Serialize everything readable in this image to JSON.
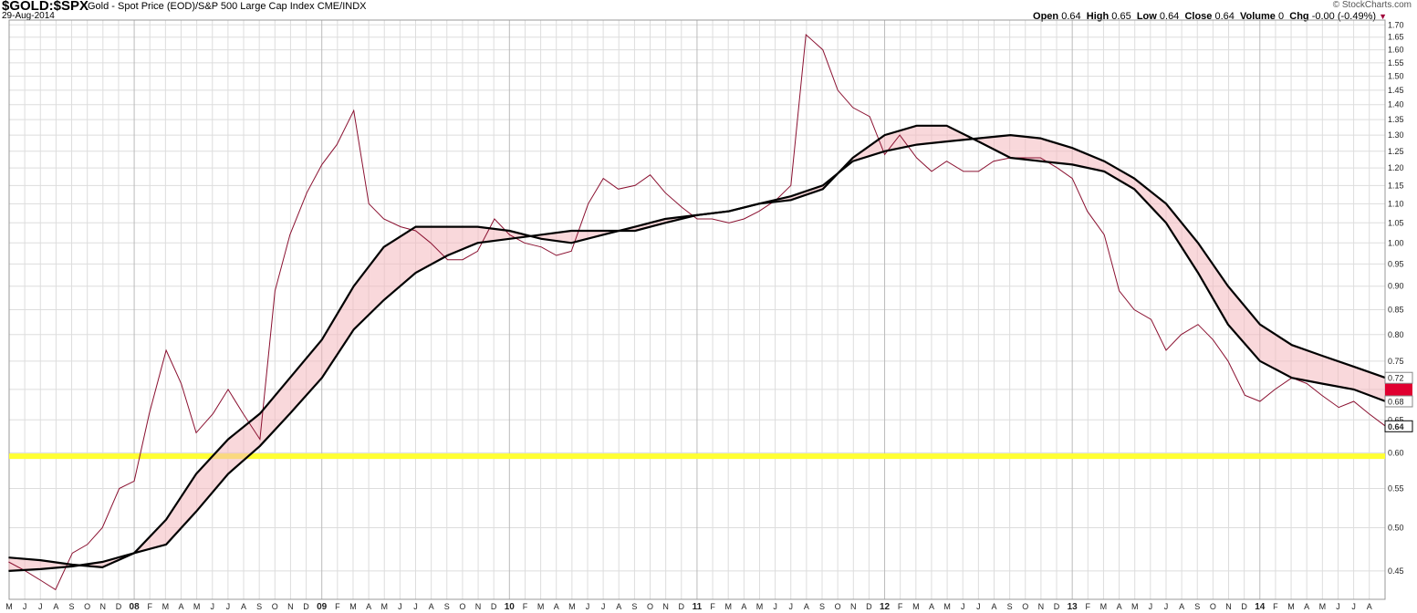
{
  "header": {
    "symbol": "$GOLD:$SPX",
    "description": "Gold - Spot Price (EOD)/S&P 500 Large Cap Index  CME/INDX",
    "date": "29-Aug-2014",
    "source": "© StockCharts.com",
    "ohlc": [
      {
        "label": "Open",
        "value": "0.64"
      },
      {
        "label": "High",
        "value": "0.65"
      },
      {
        "label": "Low",
        "value": "0.64"
      },
      {
        "label": "Close",
        "value": "0.64"
      },
      {
        "label": "Volume",
        "value": "0"
      },
      {
        "label": "Chg",
        "value": "-0.00 (-0.49%)"
      }
    ],
    "chg_marker": "▼"
  },
  "colors": {
    "price": "#8a1030",
    "ma": "#000000",
    "band": "#f4b8be",
    "support": "#ffff33",
    "grid": "#dddddd",
    "tag_ma": "#e00030"
  },
  "chart_data": {
    "type": "line",
    "scale": "log",
    "ylim": [
      0.42,
      1.72
    ],
    "yticks": [
      0.45,
      0.5,
      0.55,
      0.6,
      0.65,
      0.7,
      0.75,
      0.8,
      0.85,
      0.9,
      0.95,
      1.0,
      1.05,
      1.1,
      1.15,
      1.2,
      1.25,
      1.3,
      1.35,
      1.4,
      1.45,
      1.5,
      1.55,
      1.6,
      1.65,
      1.7
    ],
    "xlim": [
      2007.333,
      2014.667
    ],
    "x_month_labels": [
      "M",
      "J",
      "J",
      "A",
      "S",
      "O",
      "N",
      "D",
      "08",
      "F",
      "M",
      "A",
      "M",
      "J",
      "J",
      "A",
      "S",
      "O",
      "N",
      "D",
      "09",
      "F",
      "M",
      "A",
      "M",
      "J",
      "J",
      "A",
      "S",
      "O",
      "N",
      "D",
      "10",
      "F",
      "M",
      "A",
      "M",
      "J",
      "J",
      "A",
      "S",
      "O",
      "N",
      "D",
      "11",
      "F",
      "M",
      "A",
      "M",
      "J",
      "J",
      "A",
      "S",
      "O",
      "N",
      "D",
      "12",
      "F",
      "M",
      "A",
      "M",
      "J",
      "J",
      "A",
      "S",
      "O",
      "N",
      "D",
      "13",
      "F",
      "M",
      "A",
      "M",
      "J",
      "J",
      "A",
      "S",
      "O",
      "N",
      "D",
      "14",
      "F",
      "M",
      "A",
      "M",
      "J",
      "J",
      "A"
    ],
    "support_level": 0.595,
    "last_values": {
      "price": "0.64",
      "ma_fast": "0.68",
      "ma_slow": "0.72"
    },
    "series": [
      {
        "role": "price",
        "x": [
          2007.33,
          2007.42,
          2007.5,
          2007.58,
          2007.67,
          2007.75,
          2007.83,
          2007.92,
          2008.0,
          2008.08,
          2008.17,
          2008.25,
          2008.33,
          2008.42,
          2008.5,
          2008.58,
          2008.67,
          2008.75,
          2008.83,
          2008.92,
          2009.0,
          2009.08,
          2009.17,
          2009.25,
          2009.33,
          2009.42,
          2009.5,
          2009.58,
          2009.67,
          2009.75,
          2009.83,
          2009.92,
          2010.0,
          2010.08,
          2010.17,
          2010.25,
          2010.33,
          2010.42,
          2010.5,
          2010.58,
          2010.67,
          2010.75,
          2010.83,
          2010.92,
          2011.0,
          2011.08,
          2011.17,
          2011.25,
          2011.33,
          2011.42,
          2011.5,
          2011.58,
          2011.67,
          2011.75,
          2011.83,
          2011.92,
          2012.0,
          2012.08,
          2012.17,
          2012.25,
          2012.33,
          2012.42,
          2012.5,
          2012.58,
          2012.67,
          2012.75,
          2012.83,
          2012.92,
          2013.0,
          2013.08,
          2013.17,
          2013.25,
          2013.33,
          2013.42,
          2013.5,
          2013.58,
          2013.67,
          2013.75,
          2013.83,
          2013.92,
          2014.0,
          2014.08,
          2014.17,
          2014.25,
          2014.33,
          2014.42,
          2014.5,
          2014.58,
          2014.67
        ],
        "values": [
          0.46,
          0.45,
          0.44,
          0.43,
          0.47,
          0.48,
          0.5,
          0.55,
          0.56,
          0.66,
          0.77,
          0.71,
          0.63,
          0.66,
          0.7,
          0.66,
          0.62,
          0.89,
          1.02,
          1.13,
          1.21,
          1.27,
          1.38,
          1.1,
          1.06,
          1.04,
          1.03,
          1.0,
          0.96,
          0.96,
          0.98,
          1.06,
          1.02,
          1.0,
          0.99,
          0.97,
          0.98,
          1.1,
          1.17,
          1.14,
          1.15,
          1.18,
          1.13,
          1.09,
          1.06,
          1.06,
          1.05,
          1.06,
          1.08,
          1.11,
          1.15,
          1.66,
          1.6,
          1.45,
          1.39,
          1.36,
          1.24,
          1.3,
          1.23,
          1.19,
          1.22,
          1.19,
          1.19,
          1.22,
          1.23,
          1.23,
          1.23,
          1.2,
          1.17,
          1.08,
          1.02,
          0.89,
          0.85,
          0.83,
          0.77,
          0.8,
          0.82,
          0.79,
          0.75,
          0.69,
          0.68,
          0.7,
          0.72,
          0.71,
          0.69,
          0.67,
          0.68,
          0.66,
          0.64
        ]
      },
      {
        "role": "ma_fast",
        "x": [
          2007.33,
          2007.5,
          2007.67,
          2007.83,
          2008.0,
          2008.17,
          2008.33,
          2008.5,
          2008.67,
          2008.83,
          2009.0,
          2009.17,
          2009.33,
          2009.5,
          2009.67,
          2009.83,
          2010.0,
          2010.17,
          2010.33,
          2010.5,
          2010.67,
          2010.83,
          2011.0,
          2011.17,
          2011.33,
          2011.5,
          2011.67,
          2011.83,
          2012.0,
          2012.17,
          2012.33,
          2012.5,
          2012.67,
          2012.83,
          2013.0,
          2013.17,
          2013.33,
          2013.5,
          2013.67,
          2013.83,
          2014.0,
          2014.17,
          2014.33,
          2014.5,
          2014.67
        ],
        "values": [
          0.465,
          0.462,
          0.457,
          0.454,
          0.47,
          0.51,
          0.57,
          0.62,
          0.66,
          0.72,
          0.79,
          0.9,
          0.99,
          1.04,
          1.04,
          1.04,
          1.03,
          1.01,
          1.0,
          1.02,
          1.04,
          1.06,
          1.07,
          1.08,
          1.1,
          1.11,
          1.14,
          1.23,
          1.3,
          1.33,
          1.33,
          1.28,
          1.23,
          1.22,
          1.21,
          1.19,
          1.14,
          1.05,
          0.93,
          0.82,
          0.75,
          0.72,
          0.71,
          0.7,
          0.68
        ]
      },
      {
        "role": "ma_slow",
        "x": [
          2007.33,
          2007.5,
          2007.67,
          2007.83,
          2008.0,
          2008.17,
          2008.33,
          2008.5,
          2008.67,
          2008.83,
          2009.0,
          2009.17,
          2009.33,
          2009.5,
          2009.67,
          2009.83,
          2010.0,
          2010.17,
          2010.33,
          2010.5,
          2010.67,
          2010.83,
          2011.0,
          2011.17,
          2011.33,
          2011.5,
          2011.67,
          2011.83,
          2012.0,
          2012.17,
          2012.33,
          2012.5,
          2012.67,
          2012.83,
          2013.0,
          2013.17,
          2013.33,
          2013.5,
          2013.67,
          2013.83,
          2014.0,
          2014.17,
          2014.33,
          2014.5,
          2014.67
        ],
        "values": [
          0.45,
          0.452,
          0.455,
          0.46,
          0.47,
          0.48,
          0.52,
          0.57,
          0.61,
          0.66,
          0.72,
          0.81,
          0.87,
          0.93,
          0.97,
          1.0,
          1.01,
          1.02,
          1.03,
          1.03,
          1.03,
          1.05,
          1.07,
          1.08,
          1.1,
          1.12,
          1.15,
          1.22,
          1.25,
          1.27,
          1.28,
          1.29,
          1.3,
          1.29,
          1.26,
          1.22,
          1.17,
          1.1,
          1.0,
          0.9,
          0.82,
          0.78,
          0.76,
          0.74,
          0.72
        ]
      }
    ]
  }
}
